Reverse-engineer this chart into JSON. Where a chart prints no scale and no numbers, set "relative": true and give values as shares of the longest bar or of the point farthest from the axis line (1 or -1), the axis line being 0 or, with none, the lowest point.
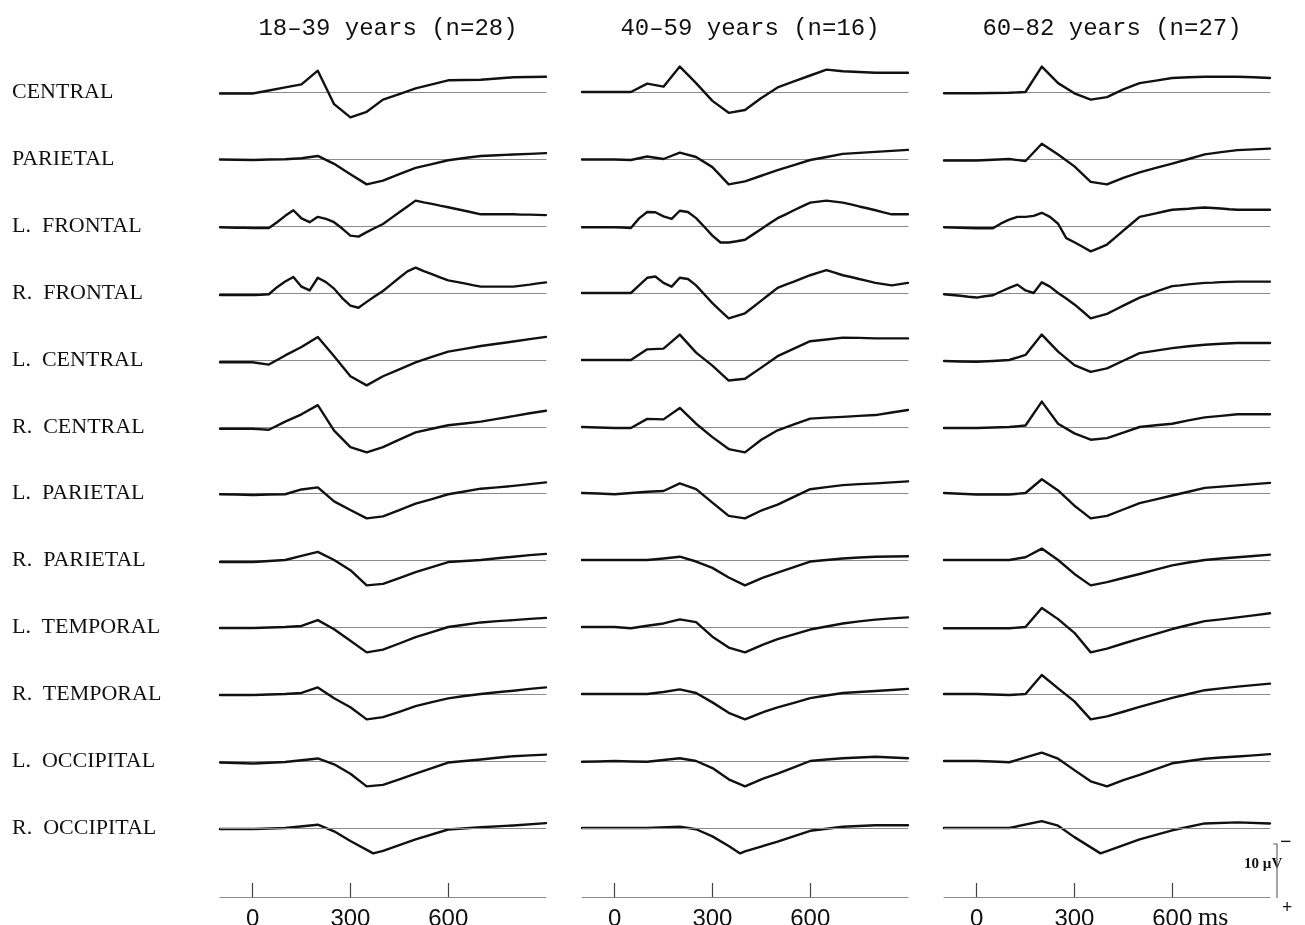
{
  "chart_data": [
    {
      "type": "line",
      "title": "18–39 years (n=28)",
      "ylabel": "CENTRAL",
      "color": "#111111",
      "marker": "none",
      "line_style": "solid",
      "relative": true,
      "tick_labels": false,
      "categories": [
        null,
        null,
        null,
        null,
        null,
        null,
        null,
        null,
        null,
        null,
        null,
        null,
        null,
        null,
        null,
        null,
        null,
        null,
        null,
        null,
        null
      ],
      "values": [
        -0.06,
        -0.06,
        -0.06,
        0.06,
        0.18,
        0.3,
        0.84,
        -0.48,
        -1,
        -0.78,
        -0.3,
        -0.08,
        0.14,
        0.3,
        0.46,
        0.47,
        0.48,
        0.53,
        0.58,
        0.59,
        0.6
      ]
    },
    {
      "type": "line",
      "title": "40–59 years (n=16)",
      "color": "#111111",
      "marker": "none",
      "line_style": "solid",
      "relative": true,
      "tick_labels": false,
      "categories": [
        null,
        null,
        null,
        null,
        null,
        null,
        null,
        null,
        null,
        null,
        null,
        null,
        null,
        null,
        null,
        null,
        null,
        null,
        null,
        null,
        null
      ],
      "values": [
        0,
        0,
        0,
        0,
        0.33,
        0.21,
        1,
        0.35,
        -0.35,
        -0.82,
        -0.71,
        -0.24,
        0.18,
        0.42,
        0.65,
        0.88,
        0.82,
        0.79,
        0.76,
        0.76,
        0.76
      ]
    },
    {
      "type": "line",
      "title": "60–82 years (n=27)",
      "color": "#111111",
      "marker": "none",
      "line_style": "solid",
      "relative": true,
      "tick_labels": false,
      "categories": [
        null,
        null,
        null,
        null,
        null,
        null,
        null,
        null,
        null,
        null,
        null,
        null,
        null,
        null,
        null,
        null,
        null,
        null,
        null,
        null,
        null
      ],
      "values": [
        -0.05,
        -0.05,
        -0.05,
        -0.04,
        -0.03,
        0,
        1,
        0.35,
        -0.05,
        -0.3,
        -0.2,
        0.1,
        0.35,
        0.45,
        0.55,
        0.58,
        0.6,
        0.6,
        0.6,
        0.58,
        0.55
      ]
    },
    {
      "type": "line",
      "ylabel": "PARIETAL",
      "color": "#111111",
      "marker": "none",
      "line_style": "solid",
      "relative": true,
      "tick_labels": false,
      "categories": [
        null,
        null,
        null,
        null,
        null,
        null,
        null,
        null,
        null,
        null,
        null,
        null,
        null,
        null,
        null,
        null,
        null,
        null,
        null,
        null,
        null
      ],
      "values": [
        -0.02,
        -0.03,
        -0.04,
        -0.02,
        -0.01,
        0.03,
        0.12,
        -0.19,
        -0.6,
        -1,
        -0.85,
        -0.6,
        -0.35,
        -0.2,
        -0.05,
        0.04,
        0.12,
        0.15,
        0.18,
        0.2,
        0.23
      ]
    },
    {
      "type": "line",
      "color": "#111111",
      "marker": "none",
      "line_style": "solid",
      "relative": true,
      "tick_labels": false,
      "categories": [
        null,
        null,
        null,
        null,
        null,
        null,
        null,
        null,
        null,
        null,
        null,
        null,
        null,
        null,
        null,
        null,
        null,
        null,
        null,
        null,
        null
      ],
      "values": [
        -0.02,
        -0.02,
        -0.02,
        -0.04,
        0.1,
        0,
        0.25,
        0.08,
        -0.32,
        -1,
        -0.88,
        -0.66,
        -0.44,
        -0.24,
        -0.04,
        0.08,
        0.2,
        0.24,
        0.28,
        0.32,
        0.36
      ]
    },
    {
      "type": "line",
      "color": "#111111",
      "marker": "none",
      "line_style": "solid",
      "relative": true,
      "tick_labels": false,
      "categories": [
        null,
        null,
        null,
        null,
        null,
        null,
        null,
        null,
        null,
        null,
        null,
        null,
        null,
        null,
        null,
        null,
        null,
        null,
        null,
        null,
        null
      ],
      "values": [
        -0.06,
        -0.06,
        -0.06,
        -0.03,
        0,
        -0.08,
        0.6,
        0.18,
        -0.29,
        -0.9,
        -1,
        -0.74,
        -0.53,
        -0.35,
        -0.18,
        0,
        0.18,
        0.27,
        0.35,
        0.38,
        0.41
      ]
    },
    {
      "type": "line",
      "ylabel": "L.  FRONTAL",
      "color": "#111111",
      "marker": "none",
      "line_style": "solid",
      "relative": true,
      "tick_labels": false,
      "categories": [
        null,
        null,
        null,
        null,
        null,
        null,
        null,
        null,
        null,
        null,
        null,
        null,
        null,
        null,
        null,
        null,
        null,
        null,
        null,
        null,
        null,
        null,
        null,
        null,
        null,
        null,
        null,
        null,
        null,
        null,
        null,
        null,
        null,
        null,
        null,
        null,
        null,
        null,
        null,
        null,
        null
      ],
      "values": [
        -0.05,
        -0.06,
        -0.07,
        -0.07,
        -0.08,
        -0.08,
        -0.08,
        0.15,
        0.4,
        0.62,
        0.3,
        0.15,
        0.36,
        0.28,
        0.15,
        -0.1,
        -0.38,
        -0.42,
        -0.24,
        -0.08,
        0.08,
        0.31,
        0.54,
        0.77,
        1,
        0.93,
        0.87,
        0.8,
        0.74,
        0.67,
        0.6,
        0.53,
        0.46,
        0.46,
        0.46,
        0.46,
        0.46,
        0.45,
        0.45,
        0.44,
        0.43
      ]
    },
    {
      "type": "line",
      "color": "#111111",
      "marker": "none",
      "line_style": "solid",
      "relative": true,
      "tick_labels": false,
      "categories": [
        null,
        null,
        null,
        null,
        null,
        null,
        null,
        null,
        null,
        null,
        null,
        null,
        null,
        null,
        null,
        null,
        null,
        null,
        null,
        null,
        null,
        null,
        null,
        null,
        null,
        null,
        null,
        null,
        null,
        null,
        null,
        null,
        null,
        null,
        null,
        null,
        null,
        null,
        null,
        null,
        null
      ],
      "values": [
        -0.05,
        -0.05,
        -0.05,
        -0.05,
        -0.05,
        -0.06,
        -0.08,
        0.3,
        0.55,
        0.54,
        0.38,
        0.28,
        0.6,
        0.55,
        0.31,
        -0.03,
        -0.38,
        -0.65,
        -0.65,
        -0.6,
        -0.54,
        -0.33,
        -0.12,
        0.1,
        0.31,
        0.46,
        0.62,
        0.77,
        0.92,
        0.96,
        1,
        0.96,
        0.92,
        0.85,
        0.77,
        0.7,
        0.62,
        0.54,
        0.46,
        0.46,
        0.46
      ]
    },
    {
      "type": "line",
      "color": "#111111",
      "marker": "none",
      "line_style": "solid",
      "relative": true,
      "tick_labels": false,
      "categories": [
        null,
        null,
        null,
        null,
        null,
        null,
        null,
        null,
        null,
        null,
        null,
        null,
        null,
        null,
        null,
        null,
        null,
        null,
        null,
        null,
        null,
        null,
        null,
        null,
        null,
        null,
        null,
        null,
        null,
        null,
        null,
        null,
        null,
        null,
        null,
        null,
        null,
        null,
        null,
        null,
        null
      ],
      "values": [
        -0.05,
        -0.06,
        -0.07,
        -0.08,
        -0.09,
        -0.09,
        -0.09,
        0.1,
        0.25,
        0.36,
        0.36,
        0.4,
        0.52,
        0.36,
        0.09,
        -0.48,
        -0.64,
        -0.82,
        -1,
        -0.87,
        -0.73,
        -0.46,
        -0.18,
        0.09,
        0.36,
        0.43,
        0.5,
        0.57,
        0.64,
        0.66,
        0.68,
        0.71,
        0.73,
        0.71,
        0.69,
        0.66,
        0.64,
        0.64,
        0.64,
        0.64,
        0.64
      ]
    },
    {
      "type": "line",
      "ylabel": "R.  FRONTAL",
      "color": "#111111",
      "marker": "none",
      "line_style": "solid",
      "relative": true,
      "tick_labels": false,
      "categories": [
        null,
        null,
        null,
        null,
        null,
        null,
        null,
        null,
        null,
        null,
        null,
        null,
        null,
        null,
        null,
        null,
        null,
        null,
        null,
        null,
        null,
        null,
        null,
        null,
        null,
        null,
        null,
        null,
        null,
        null,
        null,
        null,
        null,
        null,
        null,
        null,
        null,
        null,
        null,
        null,
        null
      ],
      "values": [
        -0.08,
        -0.08,
        -0.08,
        -0.08,
        -0.08,
        -0.07,
        -0.05,
        0.23,
        0.45,
        0.63,
        0.25,
        0.1,
        0.6,
        0.43,
        0.17,
        -0.2,
        -0.5,
        -0.58,
        -0.35,
        -0.13,
        0.08,
        0.34,
        0.6,
        0.85,
        1,
        0.86,
        0.74,
        0.62,
        0.5,
        0.44,
        0.38,
        0.31,
        0.25,
        0.25,
        0.25,
        0.25,
        0.25,
        0.29,
        0.33,
        0.38,
        0.42
      ]
    },
    {
      "type": "line",
      "color": "#111111",
      "marker": "none",
      "line_style": "solid",
      "relative": true,
      "tick_labels": false,
      "categories": [
        null,
        null,
        null,
        null,
        null,
        null,
        null,
        null,
        null,
        null,
        null,
        null,
        null,
        null,
        null,
        null,
        null,
        null,
        null,
        null,
        null,
        null,
        null,
        null,
        null,
        null,
        null,
        null,
        null,
        null,
        null,
        null,
        null,
        null,
        null,
        null,
        null,
        null,
        null,
        null,
        null
      ],
      "values": [
        0,
        0,
        0,
        0,
        0,
        0,
        0,
        0.3,
        0.6,
        0.65,
        0.4,
        0.25,
        0.6,
        0.55,
        0.3,
        -0.05,
        -0.4,
        -0.7,
        -1,
        -0.9,
        -0.8,
        -0.55,
        -0.3,
        -0.05,
        0.2,
        0.33,
        0.45,
        0.58,
        0.7,
        0.8,
        0.9,
        0.8,
        0.7,
        0.63,
        0.55,
        0.48,
        0.4,
        0.35,
        0.3,
        0.35,
        0.4
      ]
    },
    {
      "type": "line",
      "color": "#111111",
      "marker": "none",
      "line_style": "solid",
      "relative": true,
      "tick_labels": false,
      "categories": [
        null,
        null,
        null,
        null,
        null,
        null,
        null,
        null,
        null,
        null,
        null,
        null,
        null,
        null,
        null,
        null,
        null,
        null,
        null,
        null,
        null,
        null,
        null,
        null,
        null,
        null,
        null,
        null,
        null,
        null,
        null,
        null,
        null,
        null,
        null,
        null,
        null,
        null,
        null,
        null,
        null
      ],
      "values": [
        -0.05,
        -0.08,
        -0.11,
        -0.15,
        -0.18,
        -0.13,
        -0.09,
        0.06,
        0.2,
        0.33,
        0.1,
        0,
        0.42,
        0.25,
        0,
        -0.22,
        -0.45,
        -0.72,
        -1,
        -0.91,
        -0.82,
        -0.66,
        -0.5,
        -0.34,
        -0.18,
        -0.07,
        0.05,
        0.16,
        0.27,
        0.3,
        0.34,
        0.37,
        0.4,
        0.41,
        0.43,
        0.44,
        0.45,
        0.45,
        0.45,
        0.45,
        0.45
      ]
    },
    {
      "type": "line",
      "ylabel": "L.  CENTRAL",
      "color": "#111111",
      "marker": "none",
      "line_style": "solid",
      "relative": true,
      "tick_labels": false,
      "categories": [
        null,
        null,
        null,
        null,
        null,
        null,
        null,
        null,
        null,
        null,
        null,
        null,
        null,
        null,
        null,
        null,
        null,
        null,
        null,
        null,
        null
      ],
      "values": [
        -0.09,
        -0.09,
        -0.09,
        -0.18,
        0.18,
        0.51,
        0.91,
        0.15,
        -0.64,
        -1,
        -0.64,
        -0.37,
        -0.09,
        0.12,
        0.33,
        0.44,
        0.55,
        0.64,
        0.73,
        0.82,
        0.91
      ]
    },
    {
      "type": "line",
      "color": "#111111",
      "marker": "none",
      "line_style": "solid",
      "relative": true,
      "tick_labels": false,
      "categories": [
        null,
        null,
        null,
        null,
        null,
        null,
        null,
        null,
        null,
        null,
        null,
        null,
        null,
        null,
        null,
        null,
        null,
        null,
        null,
        null,
        null
      ],
      "values": [
        0,
        0,
        0,
        0,
        0.42,
        0.45,
        1,
        0.29,
        -0.22,
        -0.81,
        -0.74,
        -0.3,
        0.15,
        0.45,
        0.74,
        0.81,
        0.88,
        0.87,
        0.85,
        0.85,
        0.85
      ]
    },
    {
      "type": "line",
      "color": "#111111",
      "marker": "none",
      "line_style": "solid",
      "relative": true,
      "tick_labels": false,
      "categories": [
        null,
        null,
        null,
        null,
        null,
        null,
        null,
        null,
        null,
        null,
        null,
        null,
        null,
        null,
        null,
        null,
        null,
        null,
        null,
        null,
        null
      ],
      "values": [
        -0.04,
        -0.06,
        -0.07,
        -0.04,
        0,
        0.2,
        1,
        0.33,
        -0.2,
        -0.47,
        -0.33,
        -0.03,
        0.27,
        0.37,
        0.47,
        0.54,
        0.6,
        0.64,
        0.67,
        0.67,
        0.67
      ]
    },
    {
      "type": "line",
      "ylabel": "R.  CENTRAL",
      "color": "#111111",
      "marker": "none",
      "line_style": "solid",
      "relative": true,
      "tick_labels": false,
      "categories": [
        null,
        null,
        null,
        null,
        null,
        null,
        null,
        null,
        null,
        null,
        null,
        null,
        null,
        null,
        null,
        null,
        null,
        null,
        null,
        null,
        null
      ],
      "values": [
        -0.07,
        -0.07,
        -0.07,
        -0.11,
        0.21,
        0.5,
        0.86,
        -0.14,
        -0.79,
        -1,
        -0.79,
        -0.5,
        -0.21,
        -0.07,
        0.07,
        0.14,
        0.21,
        0.32,
        0.43,
        0.54,
        0.64
      ]
    },
    {
      "type": "line",
      "color": "#111111",
      "marker": "none",
      "line_style": "solid",
      "relative": true,
      "tick_labels": false,
      "categories": [
        null,
        null,
        null,
        null,
        null,
        null,
        null,
        null,
        null,
        null,
        null,
        null,
        null,
        null,
        null,
        null,
        null,
        null,
        null,
        null,
        null
      ],
      "values": [
        0,
        -0.02,
        -0.04,
        -0.04,
        0.32,
        0.3,
        0.75,
        0.13,
        -0.4,
        -0.87,
        -1,
        -0.5,
        -0.13,
        0.1,
        0.33,
        0.37,
        0.4,
        0.44,
        0.47,
        0.57,
        0.67
      ]
    },
    {
      "type": "line",
      "color": "#111111",
      "marker": "none",
      "line_style": "solid",
      "relative": true,
      "tick_labels": false,
      "categories": [
        null,
        null,
        null,
        null,
        null,
        null,
        null,
        null,
        null,
        null,
        null,
        null,
        null,
        null,
        null,
        null,
        null,
        null,
        null,
        null,
        null
      ],
      "values": [
        -0.04,
        -0.04,
        -0.04,
        -0.02,
        0,
        0.06,
        1,
        0.13,
        -0.25,
        -0.5,
        -0.44,
        -0.22,
        0,
        0.07,
        0.13,
        0.26,
        0.38,
        0.44,
        0.5,
        0.5,
        0.5
      ]
    },
    {
      "type": "line",
      "ylabel": "L.  PARIETAL",
      "color": "#111111",
      "marker": "none",
      "line_style": "solid",
      "relative": true,
      "tick_labels": false,
      "categories": [
        null,
        null,
        null,
        null,
        null,
        null,
        null,
        null,
        null,
        null,
        null,
        null,
        null,
        null,
        null,
        null,
        null,
        null,
        null,
        null,
        null
      ],
      "values": [
        -0.05,
        -0.06,
        -0.08,
        -0.06,
        -0.05,
        0.14,
        0.22,
        -0.33,
        -0.67,
        -1,
        -0.92,
        -0.67,
        -0.42,
        -0.24,
        -0.05,
        0.06,
        0.17,
        0.22,
        0.28,
        0.35,
        0.42
      ]
    },
    {
      "type": "line",
      "color": "#111111",
      "marker": "none",
      "line_style": "solid",
      "relative": true,
      "tick_labels": false,
      "categories": [
        null,
        null,
        null,
        null,
        null,
        null,
        null,
        null,
        null,
        null,
        null,
        null,
        null,
        null,
        null,
        null,
        null,
        null,
        null,
        null,
        null
      ],
      "values": [
        0,
        -0.02,
        -0.05,
        0,
        0.05,
        0.08,
        0.38,
        0.15,
        -0.38,
        -0.9,
        -1,
        -0.69,
        -0.46,
        -0.15,
        0.15,
        0.23,
        0.31,
        0.35,
        0.38,
        0.42,
        0.46
      ]
    },
    {
      "type": "line",
      "color": "#111111",
      "marker": "none",
      "line_style": "solid",
      "relative": true,
      "tick_labels": false,
      "categories": [
        null,
        null,
        null,
        null,
        null,
        null,
        null,
        null,
        null,
        null,
        null,
        null,
        null,
        null,
        null,
        null,
        null,
        null,
        null,
        null,
        null
      ],
      "values": [
        0,
        -0.03,
        -0.06,
        -0.06,
        -0.06,
        0,
        0.54,
        0.1,
        -0.5,
        -1,
        -0.9,
        -0.65,
        -0.4,
        -0.25,
        -0.1,
        0.05,
        0.2,
        0.25,
        0.3,
        0.35,
        0.4
      ]
    },
    {
      "type": "line",
      "ylabel": "R.  PARIETAL",
      "color": "#111111",
      "marker": "none",
      "line_style": "solid",
      "relative": true,
      "tick_labels": false,
      "categories": [
        null,
        null,
        null,
        null,
        null,
        null,
        null,
        null,
        null,
        null,
        null,
        null,
        null,
        null,
        null,
        null,
        null,
        null,
        null,
        null,
        null
      ],
      "values": [
        -0.08,
        -0.08,
        -0.08,
        -0.04,
        0,
        0.16,
        0.32,
        0,
        -0.4,
        -1,
        -0.94,
        -0.71,
        -0.48,
        -0.28,
        -0.08,
        -0.04,
        0,
        0.07,
        0.13,
        0.19,
        0.24
      ]
    },
    {
      "type": "line",
      "color": "#111111",
      "marker": "none",
      "line_style": "solid",
      "relative": true,
      "tick_labels": false,
      "categories": [
        null,
        null,
        null,
        null,
        null,
        null,
        null,
        null,
        null,
        null,
        null,
        null,
        null,
        null,
        null,
        null,
        null,
        null,
        null,
        null,
        null
      ],
      "values": [
        0,
        0,
        0,
        0,
        0,
        0.06,
        0.13,
        -0.06,
        -0.31,
        -0.69,
        -1,
        -0.72,
        -0.5,
        -0.28,
        -0.06,
        0,
        0.06,
        0.1,
        0.13,
        0.14,
        0.15
      ]
    },
    {
      "type": "line",
      "color": "#111111",
      "marker": "none",
      "line_style": "solid",
      "relative": true,
      "tick_labels": false,
      "categories": [
        null,
        null,
        null,
        null,
        null,
        null,
        null,
        null,
        null,
        null,
        null,
        null,
        null,
        null,
        null,
        null,
        null,
        null,
        null,
        null,
        null
      ],
      "values": [
        0,
        0,
        0,
        0,
        0,
        0.11,
        0.45,
        0,
        -0.55,
        -1,
        -0.87,
        -0.71,
        -0.55,
        -0.38,
        -0.21,
        -0.1,
        0,
        0.06,
        0.11,
        0.16,
        0.21
      ]
    },
    {
      "type": "line",
      "ylabel": "L.  TEMPORAL",
      "color": "#111111",
      "marker": "none",
      "line_style": "solid",
      "relative": true,
      "tick_labels": false,
      "categories": [
        null,
        null,
        null,
        null,
        null,
        null,
        null,
        null,
        null,
        null,
        null,
        null,
        null,
        null,
        null,
        null,
        null,
        null,
        null,
        null,
        null
      ],
      "values": [
        -0.04,
        -0.04,
        -0.04,
        -0.02,
        0,
        0.04,
        0.27,
        -0.09,
        -0.54,
        -1,
        -0.89,
        -0.65,
        -0.4,
        -0.2,
        0,
        0.09,
        0.18,
        0.23,
        0.27,
        0.32,
        0.36
      ]
    },
    {
      "type": "line",
      "color": "#111111",
      "marker": "none",
      "line_style": "solid",
      "relative": true,
      "tick_labels": false,
      "categories": [
        null,
        null,
        null,
        null,
        null,
        null,
        null,
        null,
        null,
        null,
        null,
        null,
        null,
        null,
        null,
        null,
        null,
        null,
        null,
        null,
        null
      ],
      "values": [
        0,
        0,
        0,
        -0.05,
        0.05,
        0.14,
        0.3,
        0.19,
        -0.38,
        -0.81,
        -1,
        -0.72,
        -0.48,
        -0.29,
        -0.1,
        0.02,
        0.14,
        0.22,
        0.29,
        0.34,
        0.38
      ]
    },
    {
      "type": "line",
      "color": "#111111",
      "marker": "none",
      "line_style": "solid",
      "relative": true,
      "tick_labels": false,
      "categories": [
        null,
        null,
        null,
        null,
        null,
        null,
        null,
        null,
        null,
        null,
        null,
        null,
        null,
        null,
        null,
        null,
        null,
        null,
        null,
        null,
        null
      ],
      "values": [
        -0.05,
        -0.05,
        -0.05,
        -0.05,
        -0.05,
        0,
        0.75,
        0.31,
        -0.23,
        -1,
        -0.85,
        -0.65,
        -0.46,
        -0.27,
        -0.08,
        0.08,
        0.23,
        0.3,
        0.38,
        0.46,
        0.54
      ]
    },
    {
      "type": "line",
      "ylabel": "R.  TEMPORAL",
      "color": "#111111",
      "marker": "none",
      "line_style": "solid",
      "relative": true,
      "tick_labels": false,
      "categories": [
        null,
        null,
        null,
        null,
        null,
        null,
        null,
        null,
        null,
        null,
        null,
        null,
        null,
        null,
        null,
        null,
        null,
        null,
        null,
        null,
        null
      ],
      "values": [
        -0.04,
        -0.04,
        -0.04,
        -0.02,
        0,
        0.04,
        0.26,
        -0.17,
        -0.52,
        -1,
        -0.91,
        -0.7,
        -0.48,
        -0.32,
        -0.17,
        -0.08,
        0,
        0.07,
        0.13,
        0.2,
        0.26
      ]
    },
    {
      "type": "line",
      "color": "#111111",
      "marker": "none",
      "line_style": "solid",
      "relative": true,
      "tick_labels": false,
      "categories": [
        null,
        null,
        null,
        null,
        null,
        null,
        null,
        null,
        null,
        null,
        null,
        null,
        null,
        null,
        null,
        null,
        null,
        null,
        null,
        null,
        null
      ],
      "values": [
        0,
        0,
        0,
        0,
        0,
        0.08,
        0.18,
        0.04,
        -0.33,
        -0.74,
        -1,
        -0.74,
        -0.53,
        -0.35,
        -0.16,
        -0.06,
        0.04,
        0.08,
        0.12,
        0.16,
        0.2
      ]
    },
    {
      "type": "line",
      "color": "#111111",
      "marker": "none",
      "line_style": "solid",
      "relative": true,
      "tick_labels": false,
      "categories": [
        null,
        null,
        null,
        null,
        null,
        null,
        null,
        null,
        null,
        null,
        null,
        null,
        null,
        null,
        null,
        null,
        null,
        null,
        null,
        null,
        null
      ],
      "values": [
        0,
        0,
        0,
        -0.02,
        -0.04,
        0,
        0.75,
        0.22,
        -0.29,
        -1,
        -0.88,
        -0.7,
        -0.51,
        -0.33,
        -0.15,
        0,
        0.15,
        0.22,
        0.29,
        0.35,
        0.41
      ]
    },
    {
      "type": "line",
      "ylabel": "L.  OCCIPITAL",
      "color": "#111111",
      "marker": "none",
      "line_style": "solid",
      "relative": true,
      "tick_labels": false,
      "categories": [
        null,
        null,
        null,
        null,
        null,
        null,
        null,
        null,
        null,
        null,
        null,
        null,
        null,
        null,
        null,
        null,
        null,
        null,
        null,
        null,
        null
      ],
      "values": [
        -0.06,
        -0.08,
        -0.1,
        -0.07,
        -0.04,
        0.03,
        0.1,
        -0.13,
        -0.5,
        -1,
        -0.94,
        -0.72,
        -0.5,
        -0.28,
        -0.06,
        0,
        0.06,
        0.13,
        0.19,
        0.22,
        0.25
      ]
    },
    {
      "type": "line",
      "color": "#111111",
      "marker": "none",
      "line_style": "solid",
      "relative": true,
      "tick_labels": false,
      "categories": [
        null,
        null,
        null,
        null,
        null,
        null,
        null,
        null,
        null,
        null,
        null,
        null,
        null,
        null,
        null,
        null,
        null,
        null,
        null,
        null,
        null
      ],
      "values": [
        -0.03,
        -0.02,
        0,
        -0.02,
        -0.03,
        0.04,
        0.11,
        0,
        -0.28,
        -0.72,
        -1,
        -0.72,
        -0.5,
        -0.25,
        0,
        0.06,
        0.11,
        0.14,
        0.17,
        0.14,
        0.11
      ]
    },
    {
      "type": "line",
      "color": "#111111",
      "marker": "none",
      "line_style": "solid",
      "relative": true,
      "tick_labels": false,
      "categories": [
        null,
        null,
        null,
        null,
        null,
        null,
        null,
        null,
        null,
        null,
        null,
        null,
        null,
        null,
        null,
        null,
        null,
        null,
        null,
        null,
        null
      ],
      "values": [
        0,
        0,
        0,
        -0.02,
        -0.05,
        0.14,
        0.33,
        0.09,
        -0.36,
        -0.8,
        -1,
        -0.75,
        -0.55,
        -0.32,
        -0.09,
        0,
        0.09,
        0.14,
        0.18,
        0.22,
        0.27
      ]
    },
    {
      "type": "line",
      "ylabel": "R.  OCCIPITAL",
      "color": "#111111",
      "marker": "none",
      "line_style": "solid",
      "relative": true,
      "xlim": [
        -100,
        900
      ],
      "xticks": [
        0,
        300,
        600
      ],
      "tick_labels": "x",
      "ref_lines": [
        {
          "axis": "y",
          "value": 0
        }
      ],
      "x": [
        -100,
        0,
        100,
        200,
        250,
        300,
        370,
        400,
        500,
        600,
        700,
        800,
        900
      ],
      "values": [
        -0.04,
        -0.04,
        0,
        0.13,
        -0.13,
        -0.51,
        -1,
        -0.9,
        -0.45,
        -0.06,
        0.03,
        0.1,
        0.19
      ]
    },
    {
      "type": "line",
      "color": "#111111",
      "marker": "none",
      "line_style": "solid",
      "relative": true,
      "xlim": [
        -100,
        900
      ],
      "xticks": [
        0,
        300,
        600
      ],
      "tick_labels": "x",
      "ref_lines": [
        {
          "axis": "y",
          "value": 0
        }
      ],
      "x": [
        -100,
        0,
        100,
        200,
        250,
        300,
        350,
        385,
        400,
        500,
        600,
        700,
        800,
        900
      ],
      "values": [
        0,
        0,
        0,
        0.05,
        -0.05,
        -0.33,
        -0.71,
        -1,
        -0.92,
        -0.54,
        -0.11,
        0.05,
        0.11,
        0.11
      ]
    },
    {
      "type": "line",
      "xlabel": "ms",
      "annotations": [
        "10 µV",
        "−",
        "+"
      ],
      "color": "#111111",
      "marker": "none",
      "line_style": "solid",
      "relative": true,
      "xlim": [
        -100,
        900
      ],
      "xticks": [
        0,
        300,
        600
      ],
      "tick_labels": "x",
      "ref_lines": [
        {
          "axis": "y",
          "value": 0
        }
      ],
      "x": [
        -100,
        0,
        100,
        200,
        250,
        300,
        380,
        400,
        500,
        600,
        700,
        800,
        900
      ],
      "values": [
        0,
        0,
        0,
        0.27,
        0.09,
        -0.36,
        -1,
        -0.91,
        -0.45,
        -0.09,
        0.18,
        0.22,
        0.18
      ]
    }
  ]
}
